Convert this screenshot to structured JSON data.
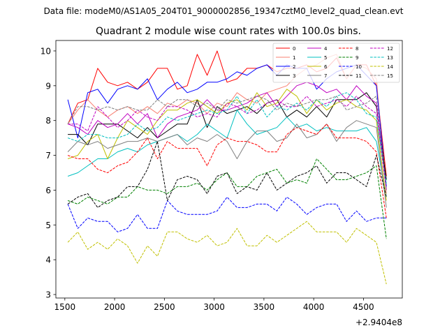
{
  "header": {
    "data_file": "Data file: modeM0/AS1A05_204T01_9000002856_19347cztM0_level2_quad_clean.evt"
  },
  "chart_data": {
    "type": "line",
    "title": "Quadrant 2 module wise count rates with 100.0s bins.",
    "xlabel": "",
    "ylabel": "",
    "x_offset_label": "+2.9404e8",
    "xlim": [
      1410,
      4890
    ],
    "ylim": [
      2.9,
      10.3
    ],
    "x_ticks": [
      1500,
      2000,
      2500,
      3000,
      3500,
      4000,
      4500
    ],
    "x_tick_labels": [
      "1500",
      "2000",
      "2500",
      "3000",
      "3500",
      "4000",
      "4500"
    ],
    "y_ticks": [
      3,
      4,
      5,
      6,
      7,
      8,
      9,
      10
    ],
    "y_tick_labels": [
      "3",
      "4",
      "5",
      "6",
      "7",
      "8",
      "9",
      "10"
    ],
    "grid": false,
    "legend_position": "top-right",
    "x": [
      1530,
      1630,
      1730,
      1830,
      1930,
      2030,
      2130,
      2230,
      2330,
      2430,
      2530,
      2630,
      2730,
      2830,
      2930,
      3030,
      3130,
      3230,
      3330,
      3430,
      3530,
      3630,
      3730,
      3830,
      3930,
      4030,
      4130,
      4230,
      4330,
      4430,
      4530,
      4630,
      4730
    ],
    "series": [
      {
        "name": "0",
        "color": "#ff0000",
        "dash": "solid",
        "values": [
          7.9,
          8.5,
          8.6,
          9.5,
          9.1,
          9.0,
          9.1,
          8.9,
          9.1,
          9.5,
          9.5,
          8.9,
          9.0,
          9.9,
          9.3,
          10.0,
          9.1,
          9.2,
          9.5,
          9.5,
          9.6,
          9.4,
          9.5,
          9.5,
          9.6,
          9.4,
          9.5,
          9.8,
          9.2,
          9.6,
          9.6,
          9.0,
          6.4
        ]
      },
      {
        "name": "1",
        "color": "#fa8072",
        "dash": "solid",
        "values": [
          7.9,
          8.3,
          8.6,
          8.3,
          8.1,
          8.3,
          8.4,
          8.2,
          8.4,
          8.2,
          8.5,
          8.4,
          8.6,
          8.5,
          8.2,
          8.5,
          8.4,
          8.8,
          8.6,
          8.5,
          8.8,
          8.9,
          9.0,
          9.3,
          9.5,
          9.6,
          9.8,
          9.9,
          9.2,
          9.6,
          9.5,
          9.2,
          5.9
        ]
      },
      {
        "name": "2",
        "color": "#0000ff",
        "dash": "solid",
        "values": [
          8.6,
          7.5,
          8.8,
          8.9,
          8.5,
          8.9,
          9.0,
          8.9,
          9.2,
          8.6,
          8.9,
          9.1,
          8.8,
          8.9,
          9.1,
          9.1,
          9.2,
          9.4,
          9.3,
          9.5,
          9.6,
          9.3,
          9.6,
          9.5,
          9.5,
          8.9,
          9.2,
          9.4,
          9.5,
          9.6,
          9.3,
          9.0,
          6.1
        ]
      },
      {
        "name": "3",
        "color": "#000000",
        "dash": "solid",
        "values": [
          7.6,
          7.6,
          7.3,
          7.9,
          7.9,
          7.9,
          7.7,
          7.5,
          7.8,
          7.5,
          7.7,
          7.9,
          7.9,
          8.6,
          7.8,
          8.4,
          8.2,
          8.3,
          8.4,
          8.2,
          8.5,
          8.6,
          8.1,
          8.3,
          8.1,
          8.4,
          8.1,
          8.6,
          8.6,
          8.6,
          8.8,
          8.4,
          6.3
        ]
      },
      {
        "name": "4",
        "color": "#c000c0",
        "dash": "solid",
        "values": [
          7.9,
          7.8,
          7.6,
          8.0,
          7.8,
          7.9,
          8.2,
          7.9,
          8.2,
          7.5,
          7.9,
          8.1,
          8.2,
          8.3,
          8.6,
          8.3,
          8.3,
          8.4,
          8.5,
          8.7,
          8.8,
          8.4,
          8.7,
          9.0,
          9.1,
          9.0,
          8.8,
          8.9,
          8.6,
          9.0,
          8.7,
          8.5,
          6.0
        ]
      },
      {
        "name": "5",
        "color": "#00c0c0",
        "dash": "solid",
        "values": [
          6.4,
          6.5,
          6.7,
          6.9,
          6.9,
          7.1,
          7.2,
          7.1,
          7.3,
          7.4,
          7.5,
          7.6,
          7.4,
          7.6,
          7.9,
          7.7,
          7.5,
          8.3,
          7.9,
          7.6,
          7.7,
          7.8,
          8.1,
          7.8,
          7.9,
          7.7,
          7.8,
          7.7,
          7.7,
          7.7,
          7.8,
          7.4,
          5.8
        ]
      },
      {
        "name": "6",
        "color": "#c0c000",
        "dash": "solid",
        "values": [
          6.9,
          7.0,
          7.4,
          7.6,
          6.9,
          7.5,
          8.0,
          7.8,
          7.6,
          8.0,
          8.3,
          8.3,
          8.5,
          8.6,
          8.4,
          8.2,
          8.5,
          8.6,
          8.3,
          8.8,
          8.4,
          8.5,
          8.9,
          8.7,
          8.2,
          8.6,
          8.3,
          8.5,
          8.6,
          8.4,
          8.3,
          8.0,
          5.7
        ]
      },
      {
        "name": "7",
        "color": "#808080",
        "dash": "solid",
        "values": [
          7.1,
          7.4,
          7.3,
          7.4,
          7.2,
          7.3,
          7.4,
          7.4,
          7.5,
          7.4,
          7.5,
          7.6,
          7.3,
          7.5,
          7.4,
          7.6,
          7.4,
          6.9,
          7.4,
          7.7,
          7.7,
          7.4,
          7.5,
          7.9,
          7.5,
          7.6,
          7.9,
          7.4,
          7.8,
          8.0,
          7.9,
          7.8,
          5.5
        ]
      },
      {
        "name": "8",
        "color": "#ff0000",
        "dash": "dashed",
        "values": [
          7.0,
          6.9,
          6.9,
          6.6,
          6.5,
          6.7,
          6.8,
          7.1,
          7.5,
          6.9,
          7.4,
          7.2,
          7.2,
          7.2,
          6.7,
          7.3,
          7.5,
          7.4,
          7.4,
          7.3,
          7.1,
          7.1,
          7.6,
          7.8,
          7.7,
          7.6,
          7.9,
          7.5,
          7.5,
          7.5,
          7.4,
          7.1,
          5.2
        ]
      },
      {
        "name": "9",
        "color": "#008000",
        "dash": "dashed",
        "values": [
          5.7,
          5.6,
          5.8,
          5.7,
          5.6,
          5.8,
          5.8,
          6.1,
          6.0,
          6.0,
          5.9,
          6.1,
          6.1,
          6.2,
          6.0,
          6.3,
          6.5,
          6.1,
          6.1,
          6.4,
          6.5,
          6.6,
          6.2,
          6.3,
          6.2,
          6.9,
          6.6,
          6.3,
          6.3,
          6.4,
          6.5,
          6.7,
          4.6
        ]
      },
      {
        "name": "10",
        "color": "#0000ff",
        "dash": "dashed",
        "values": [
          5.6,
          4.9,
          5.2,
          5.1,
          5.1,
          4.8,
          4.9,
          5.3,
          4.9,
          4.9,
          5.7,
          5.4,
          5.3,
          5.3,
          5.3,
          5.4,
          5.8,
          5.5,
          5.5,
          5.6,
          5.6,
          5.4,
          5.8,
          5.6,
          5.3,
          5.5,
          5.6,
          5.6,
          5.1,
          5.4,
          5.1,
          5.2,
          5.2
        ]
      },
      {
        "name": "11",
        "color": "#000000",
        "dash": "dashed",
        "values": [
          5.6,
          5.8,
          5.9,
          5.5,
          5.7,
          5.8,
          6.1,
          6.1,
          6.6,
          7.4,
          5.7,
          6.3,
          6.4,
          6.3,
          5.9,
          6.4,
          6.5,
          5.9,
          6.1,
          6.0,
          6.5,
          6.0,
          6.2,
          6.4,
          6.5,
          6.7,
          6.2,
          6.5,
          6.5,
          6.3,
          6.1,
          7.0,
          5.8
        ]
      },
      {
        "name": "12",
        "color": "#c000c0",
        "dash": "dashed",
        "values": [
          7.9,
          7.9,
          7.7,
          8.4,
          8.1,
          7.8,
          8.0,
          8.3,
          8.1,
          8.0,
          8.4,
          8.4,
          8.3,
          8.1,
          8.2,
          8.1,
          8.5,
          8.4,
          8.2,
          8.3,
          8.5,
          8.6,
          8.4,
          8.4,
          8.7,
          8.4,
          8.5,
          8.6,
          8.4,
          8.7,
          8.4,
          8.2,
          6.0
        ]
      },
      {
        "name": "13",
        "color": "#00c0c0",
        "dash": "dashed",
        "values": [
          7.5,
          7.4,
          7.6,
          7.6,
          7.5,
          7.5,
          7.6,
          7.9,
          7.7,
          7.8,
          8.1,
          8.0,
          8.1,
          8.2,
          8.3,
          8.2,
          8.3,
          8.7,
          8.2,
          8.6,
          8.1,
          8.4,
          8.3,
          8.5,
          8.3,
          8.6,
          8.4,
          8.7,
          8.8,
          8.6,
          8.2,
          8.1,
          6.2
        ]
      },
      {
        "name": "14",
        "color": "#c0c000",
        "dash": "dashed",
        "values": [
          4.5,
          4.8,
          4.3,
          4.5,
          4.3,
          4.6,
          4.4,
          3.9,
          4.4,
          4.1,
          4.8,
          4.8,
          4.6,
          4.5,
          4.7,
          4.4,
          4.5,
          4.9,
          4.4,
          4.4,
          4.7,
          4.5,
          4.7,
          4.9,
          5.1,
          4.8,
          4.8,
          4.8,
          4.5,
          4.9,
          4.7,
          4.5,
          3.3
        ]
      },
      {
        "name": "15",
        "color": "#808080",
        "dash": "dashed",
        "values": [
          7.9,
          8.4,
          8.4,
          8.3,
          8.4,
          8.3,
          8.4,
          8.3,
          8.3,
          8.6,
          8.4,
          8.6,
          8.6,
          8.4,
          8.5,
          8.3,
          8.6,
          8.5,
          8.6,
          8.7,
          8.6,
          8.3,
          8.5,
          8.4,
          8.5,
          8.6,
          8.6,
          8.7,
          8.3,
          8.4,
          8.5,
          8.7,
          6.0
        ]
      }
    ]
  }
}
